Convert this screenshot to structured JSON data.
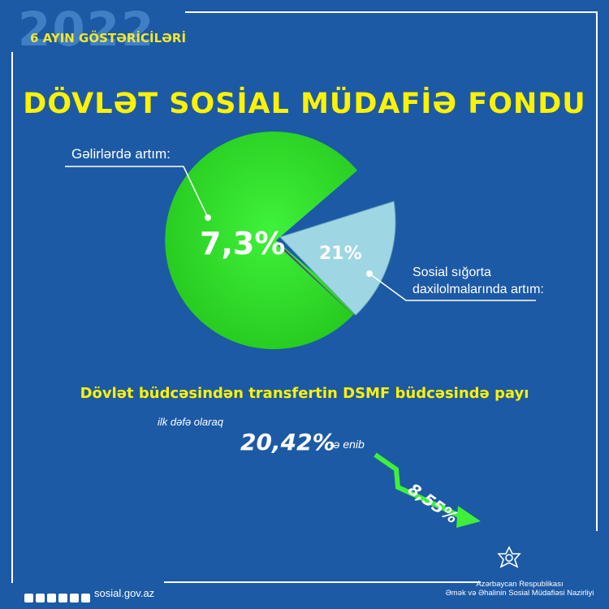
{
  "header": {
    "year": "2022",
    "period": "6 AYIN GÖSTƏRİCİLƏRİ",
    "title": "DÖVLƏT SOSİAL MÜDAFİƏ FONDU"
  },
  "pie": {
    "income_label": "Gəlirlərdə artım:",
    "income_value": "7,3%",
    "social_value": "21%",
    "social_label_line1": "Sosial sığorta",
    "social_label_line2": "daxilolmalarında artım:"
  },
  "transfer": {
    "title": "Dövlət büdcəsindən transfertin DSMF büdcəsində payı",
    "note": "ilk dəfə olaraq",
    "from_value": "20,42%",
    "from_suffix": "-ə enib",
    "to_value": "8,55%"
  },
  "footer": {
    "site": "sosial.gov.az",
    "ministry_line1": "Azərbaycan Respublikası",
    "ministry_line2": "Əmək və Əhalinin Sosial Müdafiəsi Nazirliyi"
  },
  "colors": {
    "background": "#1c5aa6",
    "accent_yellow": "#fff200",
    "pie_green": "#35e42a",
    "slice_blue": "#9fd6e4",
    "arrow_green": "#3ef03a"
  }
}
